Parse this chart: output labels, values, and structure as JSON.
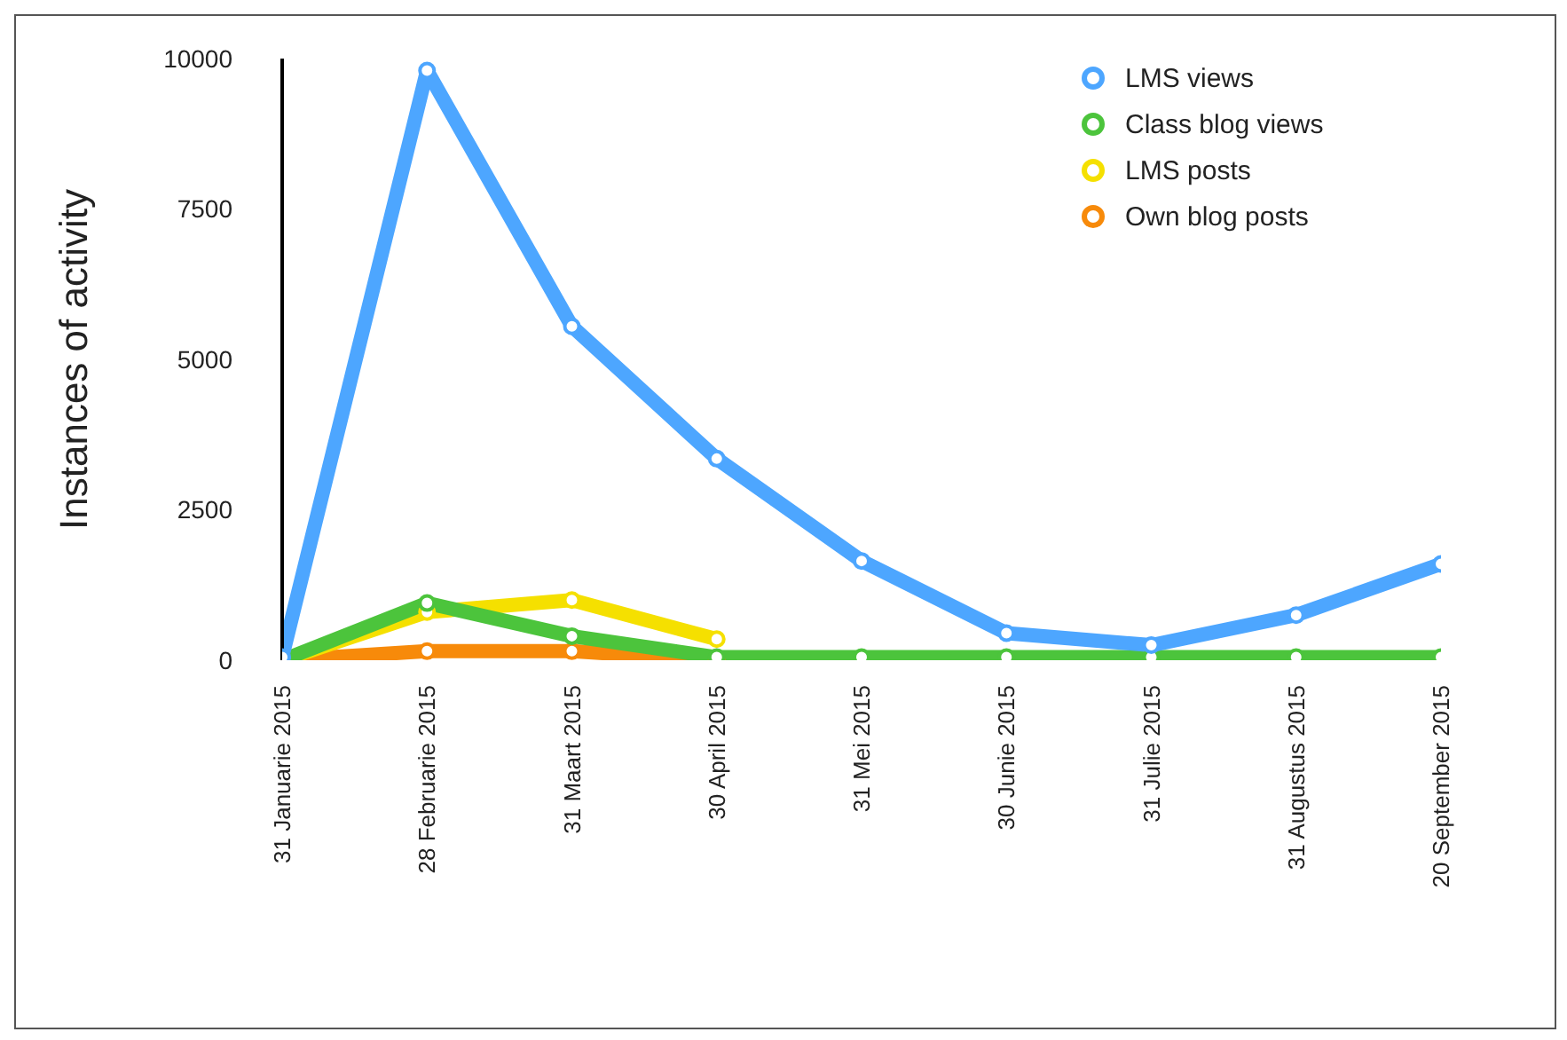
{
  "chart_data": {
    "type": "line",
    "ylabel": "Instances of activity",
    "categories": [
      "31 Januarie 2015",
      "28 Februarie 2015",
      "31 Maart 2015",
      "30 April 2015",
      "31 Mei 2015",
      "30 Junie 2015",
      "31 Julie 2015",
      "31 Augustus 2015",
      "20 September 2015"
    ],
    "series": [
      {
        "name": "LMS views",
        "color": "#4da6ff",
        "values": [
          50,
          9800,
          5550,
          3350,
          1650,
          450,
          250,
          750,
          1600
        ]
      },
      {
        "name": "Class blog views",
        "color": "#4cc43c",
        "values": [
          0,
          950,
          400,
          50,
          50,
          50,
          50,
          50,
          50
        ]
      },
      {
        "name": "LMS posts",
        "color": "#f5e000",
        "values": [
          0,
          800,
          1000,
          350,
          null,
          null,
          null,
          null,
          null
        ]
      },
      {
        "name": "Own blog posts",
        "color": "#f78a0a",
        "values": [
          0,
          150,
          150,
          0,
          null,
          null,
          null,
          null,
          null
        ]
      }
    ],
    "ylim": [
      0,
      10000
    ],
    "yticks": [
      0,
      2500,
      5000,
      7500,
      10000
    ],
    "grid": false,
    "legend": "top right",
    "marker": "circle",
    "line_style": "solid"
  }
}
